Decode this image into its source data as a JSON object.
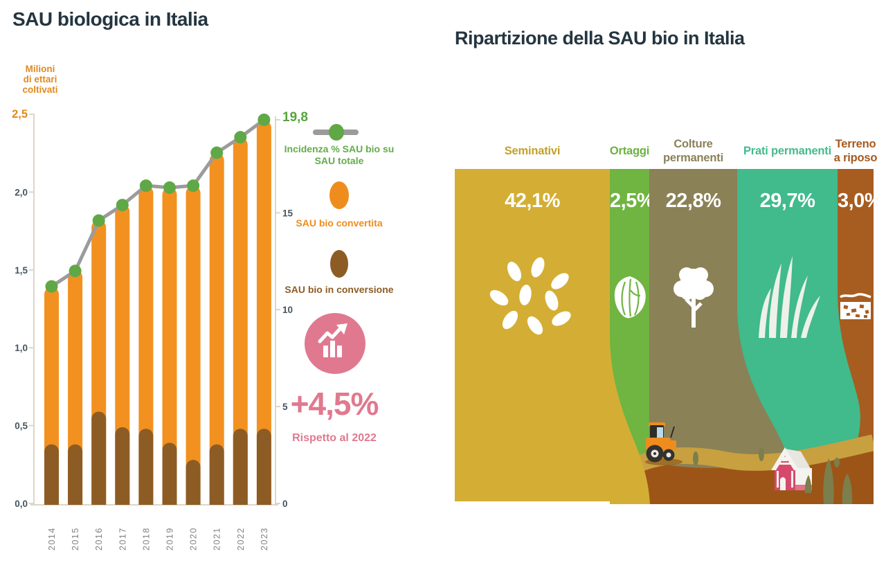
{
  "left_chart": {
    "title": "SAU biologica in Italia",
    "y_axis_label_lines": [
      "Milioni",
      "di ettari",
      "coltivati"
    ],
    "y_left_ticks": [
      {
        "v": 2.5,
        "label": "2,5"
      },
      {
        "v": 2.0,
        "label": "2,0"
      },
      {
        "v": 1.5,
        "label": "1,5"
      },
      {
        "v": 1.0,
        "label": "1,0"
      },
      {
        "v": 0.5,
        "label": "0,5"
      },
      {
        "v": 0.0,
        "label": "0,0"
      }
    ],
    "y_right_ticks": [
      {
        "v": 19.8,
        "label": "19,8"
      },
      {
        "v": 15,
        "label": "15"
      },
      {
        "v": 10,
        "label": "10"
      },
      {
        "v": 5,
        "label": "5"
      },
      {
        "v": 0,
        "label": "0"
      }
    ],
    "legend": {
      "line_label": "Incidenza % SAU bio su SAU totale",
      "converted_label": "SAU bio convertita",
      "conversion_label": "SAU bio in conversione"
    },
    "badge": {
      "value": "+4,5%",
      "caption": "Rispetto al 2022"
    }
  },
  "right_chart": {
    "title": "Ripartizione della SAU bio in Italia",
    "columns": [
      {
        "label": "Seminativi",
        "pct_label": "42,1%",
        "pct": 42.1,
        "color": "#d4ae34",
        "label_color": "#c2a12b",
        "icon": "seeds-icon"
      },
      {
        "label": "Ortaggi",
        "pct_label": "2,5%",
        "pct": 2.5,
        "color": "#70b441",
        "label_color": "#6cb23e",
        "icon": "lettuce-icon"
      },
      {
        "label": "Colture permanenti",
        "pct_label": "22,8%",
        "pct": 22.8,
        "color": "#8a8156",
        "label_color": "#8a8159",
        "icon": "tree-icon"
      },
      {
        "label": "Prati permanenti",
        "pct_label": "29,7%",
        "pct": 29.7,
        "color": "#41ba8c",
        "label_color": "#44ba8d",
        "icon": "grass-icon"
      },
      {
        "label": "Terreno a riposo",
        "pct_label": "3,0%",
        "pct": 3.0,
        "color": "#a75c20",
        "label_color": "#a55a20",
        "icon": "soil-icon"
      }
    ]
  },
  "chart_data": [
    {
      "type": "bar+line",
      "title": "SAU biologica in Italia",
      "categories": [
        "2014",
        "2015",
        "2016",
        "2017",
        "2018",
        "2019",
        "2020",
        "2021",
        "2022",
        "2023"
      ],
      "ylabel_left": "Milioni di ettari coltivati",
      "ylim_left": [
        0,
        2.5
      ],
      "ylabel_right": "Incidenza % SAU bio su SAU totale",
      "ylim_right": [
        0,
        19.8
      ],
      "grid": false,
      "legend_position": "right",
      "series": [
        {
          "name": "SAU bio totale (convertita + in conversione)",
          "type": "bar",
          "axis": "left",
          "values": [
            1.39,
            1.5,
            1.82,
            1.92,
            2.04,
            2.03,
            2.04,
            2.25,
            2.35,
            2.46
          ]
        },
        {
          "name": "SAU bio in conversione",
          "type": "bar",
          "axis": "left",
          "values": [
            0.38,
            0.38,
            0.59,
            0.49,
            0.48,
            0.39,
            0.28,
            0.38,
            0.48,
            0.48
          ]
        },
        {
          "name": "Incidenza % SAU bio su SAU totale",
          "type": "line",
          "axis": "right",
          "values": [
            11.2,
            12.0,
            14.6,
            15.4,
            16.4,
            16.3,
            16.4,
            18.1,
            18.9,
            19.8
          ],
          "last_value_label": "19,8"
        }
      ],
      "annotation": {
        "value": "+4,5%",
        "caption": "Rispetto al 2022"
      }
    },
    {
      "type": "proportional-columns",
      "title": "Ripartizione della SAU bio in Italia",
      "categories": [
        "Seminativi",
        "Ortaggi",
        "Colture permanenti",
        "Prati permanenti",
        "Terreno a riposo"
      ],
      "values": [
        42.1,
        2.5,
        22.8,
        29.7,
        3.0
      ],
      "unit": "%"
    }
  ],
  "colors": {
    "title": "#243540",
    "bar_orange": "#f29120",
    "bar_brown": "#8d5c25",
    "line_gray": "#9b9b9b",
    "dot_green": "#5fa845",
    "value_green": "#55a53c",
    "legend_green": "#62ac48",
    "legend_orange": "#ef8c1e",
    "legend_brown": "#8d5c25",
    "pink": "#e0798f",
    "axis_text": "#45555f",
    "year_text": "#7f8285",
    "axis_line": "#ddd6c9",
    "ylabel_orange": "#e08a1f",
    "ground_brown": "#9d5517",
    "path_tan": "#c8a040",
    "tree_olive": "#7c7e4b"
  }
}
